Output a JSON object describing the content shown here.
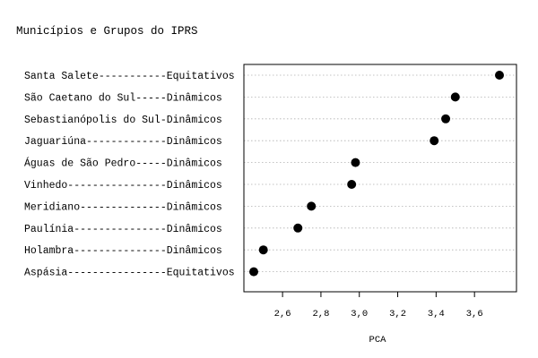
{
  "chart_data": {
    "type": "scatter",
    "title": "Municípios e Grupos do IPRS",
    "xlabel": "PCA",
    "ylabel": "",
    "categories": [
      "Santa Salete-----------Equitativos",
      "São Caetano do Sul-----Dinâmicos",
      "Sebastianópolis do Sul-Dinâmicos",
      "Jaguariúna-------------Dinâmicos",
      "Águas de São Pedro-----Dinâmicos",
      "Vinhedo----------------Dinâmicos",
      "Meridiano--------------Dinâmicos",
      "Paulínia---------------Dinâmicos",
      "Holambra---------------Dinâmicos",
      "Aspásia----------------Equitativos"
    ],
    "values": [
      3.73,
      3.5,
      3.45,
      3.39,
      2.98,
      2.96,
      2.75,
      2.68,
      2.5,
      2.45
    ],
    "xlim": [
      2.42,
      3.76
    ],
    "xticks": [
      2.6,
      2.8,
      3.0,
      3.2,
      3.4,
      3.6
    ],
    "xtick_labels": [
      "2,6",
      "2,8",
      "3,0",
      "3,2",
      "3,4",
      "3,6"
    ],
    "grid": "horizontal dotted",
    "marker_color": "#000000",
    "grid_color": "#b0b0b0"
  }
}
